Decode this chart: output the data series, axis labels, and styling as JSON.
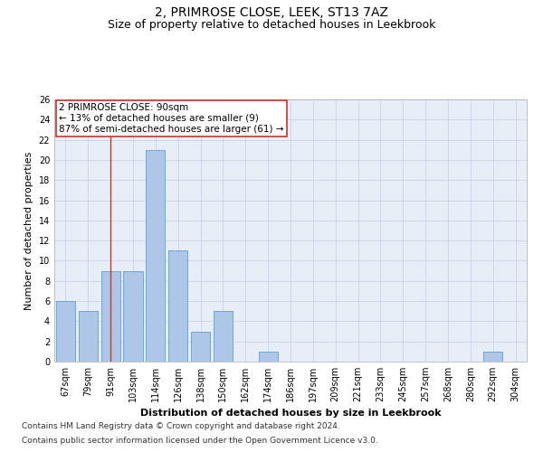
{
  "title": "2, PRIMROSE CLOSE, LEEK, ST13 7AZ",
  "subtitle": "Size of property relative to detached houses in Leekbrook",
  "xlabel": "Distribution of detached houses by size in Leekbrook",
  "ylabel": "Number of detached properties",
  "categories": [
    "67sqm",
    "79sqm",
    "91sqm",
    "103sqm",
    "114sqm",
    "126sqm",
    "138sqm",
    "150sqm",
    "162sqm",
    "174sqm",
    "186sqm",
    "197sqm",
    "209sqm",
    "221sqm",
    "233sqm",
    "245sqm",
    "257sqm",
    "268sqm",
    "280sqm",
    "292sqm",
    "304sqm"
  ],
  "values": [
    6,
    5,
    9,
    9,
    21,
    11,
    3,
    5,
    0,
    1,
    0,
    0,
    0,
    0,
    0,
    0,
    0,
    0,
    0,
    1,
    0
  ],
  "bar_color": "#aec6e8",
  "bar_edge_color": "#5a9fd4",
  "highlight_index": 2,
  "highlight_color": "#c0392b",
  "ylim": [
    0,
    26
  ],
  "yticks": [
    0,
    2,
    4,
    6,
    8,
    10,
    12,
    14,
    16,
    18,
    20,
    22,
    24,
    26
  ],
  "annotation_line1": "2 PRIMROSE CLOSE: 90sqm",
  "annotation_line2": "← 13% of detached houses are smaller (9)",
  "annotation_line3": "87% of semi-detached houses are larger (61) →",
  "annotation_box_color": "#ffffff",
  "annotation_box_edge_color": "#c0392b",
  "footer_line1": "Contains HM Land Registry data © Crown copyright and database right 2024.",
  "footer_line2": "Contains public sector information licensed under the Open Government Licence v3.0.",
  "background_color": "#ffffff",
  "plot_bg_color": "#e8eef8",
  "grid_color": "#c8d4e8",
  "title_fontsize": 10,
  "subtitle_fontsize": 9,
  "xlabel_fontsize": 8,
  "ylabel_fontsize": 8,
  "tick_fontsize": 7,
  "annotation_fontsize": 7.5,
  "footer_fontsize": 6.5
}
